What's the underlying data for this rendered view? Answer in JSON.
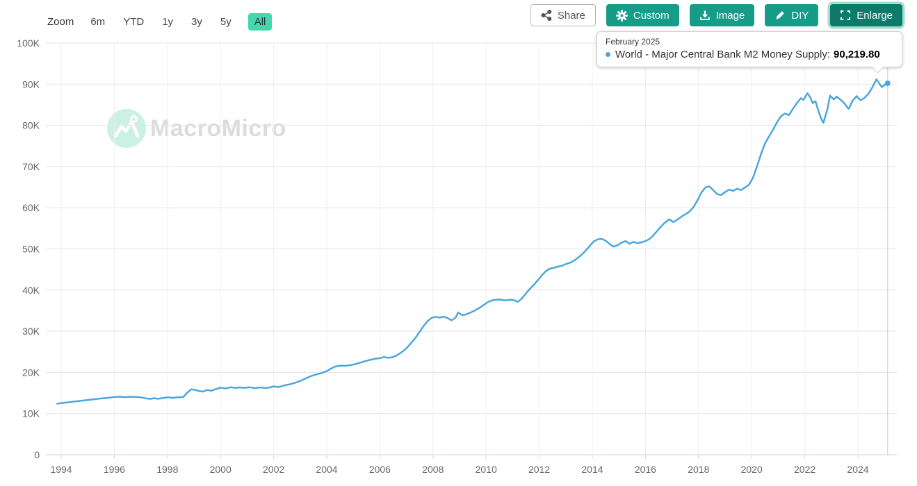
{
  "toolbar": {
    "zoom_label": "Zoom",
    "ranges": [
      {
        "label": "6m",
        "selected": false
      },
      {
        "label": "YTD",
        "selected": false
      },
      {
        "label": "1y",
        "selected": false
      },
      {
        "label": "3y",
        "selected": false
      },
      {
        "label": "5y",
        "selected": false
      },
      {
        "label": "All",
        "selected": true
      }
    ],
    "buttons": [
      {
        "id": "share",
        "label": "Share",
        "icon": "share-icon"
      },
      {
        "id": "custom",
        "label": "Custom",
        "icon": "gear-icon"
      },
      {
        "id": "image",
        "label": "Image",
        "icon": "download-icon"
      },
      {
        "id": "diy",
        "label": "DIY",
        "icon": "pencil-icon"
      },
      {
        "id": "enlarge",
        "label": "Enlarge",
        "icon": "expand-icon"
      }
    ]
  },
  "watermark": {
    "text": "MacroMicro"
  },
  "tooltip": {
    "date": "February 2025",
    "series_label": "World - Major Central Bank M2 Money Supply:",
    "value": "90,219.80",
    "marker_color": "#4ba7dc"
  },
  "colors": {
    "line": "#4ba7dc",
    "button_teal": "#169c87",
    "button_teal_dark": "#0d7a6a",
    "button_ring": "#a3ddcf",
    "range_selected_bg": "#46d6ad",
    "grid": "#e6e6e6",
    "grid_vertical": "#efefef",
    "axis": "#ccd6eb",
    "axis_label": "#666666",
    "crosshair": "#cccccc",
    "watermark_mint": "#cbf1e5"
  },
  "chart_data": {
    "type": "line",
    "title": "World - Major Central Bank M2 Money Supply",
    "x_axis": {
      "tick_years": [
        1994,
        1996,
        1998,
        2000,
        2002,
        2004,
        2006,
        2008,
        2010,
        2012,
        2014,
        2016,
        2018,
        2020,
        2022,
        2024
      ]
    },
    "y_axis": {
      "min": 0,
      "max": 100000,
      "tick_interval": 10000,
      "tick_labels": [
        "0",
        "10K",
        "20K",
        "30K",
        "40K",
        "50K",
        "60K",
        "70K",
        "80K",
        "90K",
        "100K"
      ]
    },
    "hover": {
      "x": 2025.12,
      "date": "February 2025",
      "value": 90219.8
    },
    "series": [
      {
        "name": "World - Major Central Bank M2 Money Supply",
        "color": "#4ba7dc",
        "points": [
          [
            1993.85,
            12400
          ],
          [
            1994.0,
            12550
          ],
          [
            1994.2,
            12700
          ],
          [
            1994.4,
            12850
          ],
          [
            1994.6,
            13000
          ],
          [
            1994.8,
            13150
          ],
          [
            1995.0,
            13300
          ],
          [
            1995.2,
            13450
          ],
          [
            1995.4,
            13600
          ],
          [
            1995.6,
            13750
          ],
          [
            1995.8,
            13850
          ],
          [
            1996.0,
            14050
          ],
          [
            1996.2,
            14100
          ],
          [
            1996.4,
            14000
          ],
          [
            1996.6,
            14100
          ],
          [
            1996.8,
            14050
          ],
          [
            1997.0,
            13950
          ],
          [
            1997.2,
            13700
          ],
          [
            1997.35,
            13550
          ],
          [
            1997.5,
            13750
          ],
          [
            1997.65,
            13600
          ],
          [
            1997.8,
            13750
          ],
          [
            1998.0,
            13950
          ],
          [
            1998.2,
            13850
          ],
          [
            1998.4,
            13950
          ],
          [
            1998.6,
            14050
          ],
          [
            1998.75,
            15100
          ],
          [
            1998.9,
            15900
          ],
          [
            1999.05,
            15750
          ],
          [
            1999.2,
            15450
          ],
          [
            1999.35,
            15350
          ],
          [
            1999.5,
            15750
          ],
          [
            1999.65,
            15550
          ],
          [
            1999.8,
            15900
          ],
          [
            2000.0,
            16300
          ],
          [
            2000.2,
            16100
          ],
          [
            2000.4,
            16400
          ],
          [
            2000.55,
            16200
          ],
          [
            2000.7,
            16350
          ],
          [
            2000.9,
            16250
          ],
          [
            2001.1,
            16400
          ],
          [
            2001.3,
            16150
          ],
          [
            2001.5,
            16350
          ],
          [
            2001.7,
            16200
          ],
          [
            2001.85,
            16350
          ],
          [
            2002.0,
            16600
          ],
          [
            2002.2,
            16450
          ],
          [
            2002.4,
            16850
          ],
          [
            2002.6,
            17100
          ],
          [
            2002.8,
            17450
          ],
          [
            2003.0,
            17950
          ],
          [
            2003.2,
            18500
          ],
          [
            2003.4,
            19100
          ],
          [
            2003.6,
            19500
          ],
          [
            2003.8,
            19850
          ],
          [
            2004.0,
            20300
          ],
          [
            2004.15,
            20900
          ],
          [
            2004.3,
            21400
          ],
          [
            2004.5,
            21650
          ],
          [
            2004.7,
            21600
          ],
          [
            2004.85,
            21750
          ],
          [
            2005.0,
            21900
          ],
          [
            2005.2,
            22250
          ],
          [
            2005.4,
            22650
          ],
          [
            2005.6,
            23000
          ],
          [
            2005.8,
            23300
          ],
          [
            2006.0,
            23450
          ],
          [
            2006.15,
            23750
          ],
          [
            2006.3,
            23550
          ],
          [
            2006.45,
            23650
          ],
          [
            2006.6,
            24000
          ],
          [
            2006.75,
            24600
          ],
          [
            2006.9,
            25300
          ],
          [
            2007.05,
            26200
          ],
          [
            2007.2,
            27300
          ],
          [
            2007.35,
            28500
          ],
          [
            2007.5,
            29900
          ],
          [
            2007.65,
            31300
          ],
          [
            2007.8,
            32500
          ],
          [
            2007.95,
            33250
          ],
          [
            2008.1,
            33500
          ],
          [
            2008.25,
            33300
          ],
          [
            2008.4,
            33550
          ],
          [
            2008.55,
            33200
          ],
          [
            2008.7,
            32650
          ],
          [
            2008.85,
            33300
          ],
          [
            2008.95,
            34550
          ],
          [
            2009.1,
            33900
          ],
          [
            2009.25,
            34100
          ],
          [
            2009.4,
            34500
          ],
          [
            2009.55,
            34950
          ],
          [
            2009.7,
            35500
          ],
          [
            2009.85,
            36100
          ],
          [
            2010.0,
            36800
          ],
          [
            2010.15,
            37350
          ],
          [
            2010.3,
            37600
          ],
          [
            2010.5,
            37700
          ],
          [
            2010.7,
            37500
          ],
          [
            2010.9,
            37650
          ],
          [
            2011.05,
            37550
          ],
          [
            2011.2,
            37150
          ],
          [
            2011.35,
            38000
          ],
          [
            2011.5,
            39200
          ],
          [
            2011.65,
            40300
          ],
          [
            2011.8,
            41300
          ],
          [
            2011.95,
            42400
          ],
          [
            2012.1,
            43600
          ],
          [
            2012.25,
            44600
          ],
          [
            2012.4,
            45200
          ],
          [
            2012.55,
            45400
          ],
          [
            2012.7,
            45700
          ],
          [
            2012.85,
            45900
          ],
          [
            2013.0,
            46300
          ],
          [
            2013.15,
            46600
          ],
          [
            2013.3,
            47100
          ],
          [
            2013.45,
            47800
          ],
          [
            2013.6,
            48600
          ],
          [
            2013.75,
            49600
          ],
          [
            2013.9,
            50700
          ],
          [
            2014.05,
            51800
          ],
          [
            2014.2,
            52300
          ],
          [
            2014.35,
            52450
          ],
          [
            2014.5,
            52000
          ],
          [
            2014.65,
            51200
          ],
          [
            2014.8,
            50550
          ],
          [
            2014.95,
            50900
          ],
          [
            2015.1,
            51500
          ],
          [
            2015.25,
            51900
          ],
          [
            2015.4,
            51250
          ],
          [
            2015.55,
            51700
          ],
          [
            2015.7,
            51400
          ],
          [
            2015.85,
            51600
          ],
          [
            2016.0,
            51900
          ],
          [
            2016.15,
            52400
          ],
          [
            2016.3,
            53300
          ],
          [
            2016.5,
            54800
          ],
          [
            2016.7,
            56200
          ],
          [
            2016.9,
            57200
          ],
          [
            2017.05,
            56500
          ],
          [
            2017.2,
            57100
          ],
          [
            2017.35,
            57800
          ],
          [
            2017.5,
            58400
          ],
          [
            2017.65,
            59000
          ],
          [
            2017.8,
            60100
          ],
          [
            2017.95,
            61700
          ],
          [
            2018.1,
            63600
          ],
          [
            2018.25,
            64900
          ],
          [
            2018.4,
            65200
          ],
          [
            2018.55,
            64300
          ],
          [
            2018.7,
            63300
          ],
          [
            2018.85,
            63100
          ],
          [
            2019.0,
            63800
          ],
          [
            2019.15,
            64400
          ],
          [
            2019.3,
            64100
          ],
          [
            2019.45,
            64600
          ],
          [
            2019.6,
            64300
          ],
          [
            2019.75,
            64900
          ],
          [
            2019.9,
            65600
          ],
          [
            2020.05,
            67300
          ],
          [
            2020.2,
            70000
          ],
          [
            2020.35,
            73000
          ],
          [
            2020.5,
            75600
          ],
          [
            2020.65,
            77300
          ],
          [
            2020.8,
            78900
          ],
          [
            2020.95,
            80700
          ],
          [
            2021.1,
            82200
          ],
          [
            2021.25,
            82900
          ],
          [
            2021.4,
            82500
          ],
          [
            2021.55,
            84000
          ],
          [
            2021.7,
            85400
          ],
          [
            2021.85,
            86600
          ],
          [
            2021.95,
            86200
          ],
          [
            2022.1,
            87800
          ],
          [
            2022.2,
            86900
          ],
          [
            2022.3,
            85400
          ],
          [
            2022.4,
            85900
          ],
          [
            2022.5,
            83800
          ],
          [
            2022.6,
            81900
          ],
          [
            2022.7,
            80600
          ],
          [
            2022.85,
            83900
          ],
          [
            2022.95,
            87200
          ],
          [
            2023.1,
            86300
          ],
          [
            2023.2,
            87000
          ],
          [
            2023.35,
            86200
          ],
          [
            2023.5,
            85300
          ],
          [
            2023.65,
            84000
          ],
          [
            2023.8,
            86000
          ],
          [
            2023.95,
            87100
          ],
          [
            2024.1,
            86100
          ],
          [
            2024.25,
            86700
          ],
          [
            2024.4,
            87700
          ],
          [
            2024.55,
            89300
          ],
          [
            2024.7,
            91200
          ],
          [
            2024.8,
            90200
          ],
          [
            2024.9,
            89300
          ],
          [
            2025.0,
            89800
          ],
          [
            2025.12,
            90219.8
          ]
        ]
      }
    ]
  }
}
